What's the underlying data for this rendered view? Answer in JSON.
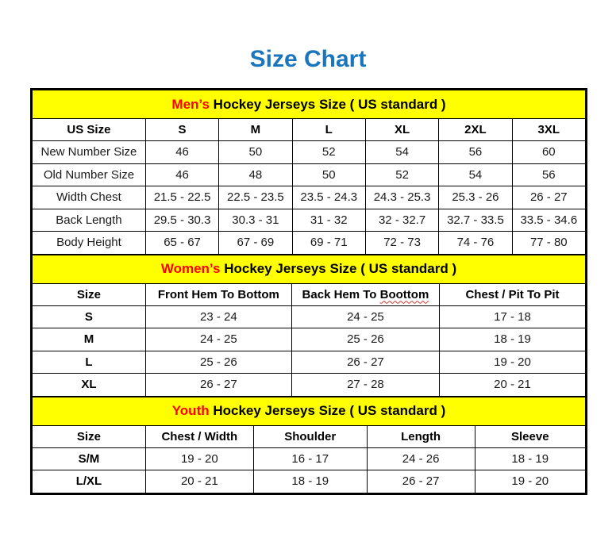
{
  "page": {
    "title": "Size Chart"
  },
  "colors": {
    "title_blue": "#1B75BC",
    "banner_yellow": "#FFFF00",
    "accent_red": "#FF0000",
    "grid_black": "#000000"
  },
  "sections": [
    {
      "id": "mens",
      "banner": {
        "highlight": "Men’s",
        "rest": " Hockey Jerseys Size ( US standard )"
      },
      "col_widths": [
        "20.5%",
        "13.25%",
        "13.25%",
        "13.25%",
        "13.25%",
        "13.25%",
        "13.25%"
      ],
      "header": [
        "US Size",
        "S",
        "M",
        "L",
        "XL",
        "2XL",
        "3XL"
      ],
      "first_col_bold": false,
      "rows": [
        [
          "New Number Size",
          "46",
          "50",
          "52",
          "54",
          "56",
          "60"
        ],
        [
          "Old Number Size",
          "46",
          "48",
          "50",
          "52",
          "54",
          "56"
        ],
        [
          "Width Chest",
          "21.5 - 22.5",
          "22.5 - 23.5",
          "23.5 - 24.3",
          "24.3 - 25.3",
          "25.3 - 26",
          "26 - 27"
        ],
        [
          "Back Length",
          "29.5 - 30.3",
          "30.3 - 31",
          "31 - 32",
          "32 - 32.7",
          "32.7 - 33.5",
          "33.5 - 34.6"
        ],
        [
          "Body Height",
          "65 - 67",
          "67 - 69",
          "69 - 71",
          "72 - 73",
          "74 - 76",
          "77 - 80"
        ]
      ]
    },
    {
      "id": "womens",
      "banner": {
        "highlight": "Women’s",
        "rest": " Hockey Jerseys Size ( US standard )"
      },
      "col_widths": [
        "20.5%",
        "26.4%",
        "26.7%",
        "26.4%"
      ],
      "header": [
        "Size",
        "Front Hem To Bottom",
        "Back Hem To Boottom",
        "Chest / Pit To Pit"
      ],
      "misspell": {
        "col": 2,
        "prefix": "Back Hem To ",
        "word": "Boottom"
      },
      "first_col_bold": true,
      "rows": [
        [
          "S",
          "23 - 24",
          "24 - 25",
          "17 - 18"
        ],
        [
          "M",
          "24 - 25",
          "25 - 26",
          "18 - 19"
        ],
        [
          "L",
          "25 - 26",
          "26 - 27",
          "19 - 20"
        ],
        [
          "XL",
          "26 - 27",
          "27 - 28",
          "20 - 21"
        ]
      ]
    },
    {
      "id": "youth",
      "banner": {
        "highlight": "Youth",
        "rest": " Hockey Jerseys Size ( US standard )"
      },
      "col_widths": [
        "20.5%",
        "19.5%",
        "20.5%",
        "19.5%",
        "20%"
      ],
      "header": [
        "Size",
        "Chest / Width",
        "Shoulder",
        "Length",
        "Sleeve"
      ],
      "first_col_bold": true,
      "rows": [
        [
          "S/M",
          "19 - 20",
          "16 - 17",
          "24 - 26",
          "18 - 19"
        ],
        [
          "L/XL",
          "20 - 21",
          "18 - 19",
          "26 - 27",
          "19 - 20"
        ]
      ]
    }
  ]
}
